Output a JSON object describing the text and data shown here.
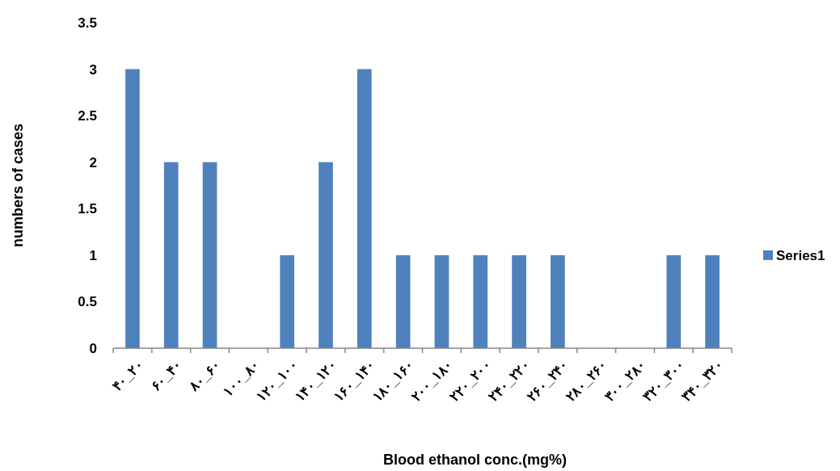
{
  "chart_data": {
    "type": "bar",
    "xlabel": "Blood ethanol conc.(mg%)",
    "ylabel": "numbers of cases",
    "categories": [
      "۴۰_۲۰",
      "۶۰_۴۰",
      "۸۰_۶۰",
      "۱۰۰_۸۰",
      "۱۲۰_۱۰۰",
      "۱۴۰_۱۲۰",
      "۱۶۰_۱۴۰",
      "۱۸۰_۱۶۰",
      "۲۰۰_۱۸۰",
      "۲۲۰_۲۰۰",
      "۲۴۰_۲۲۰",
      "۲۶۰_۲۴۰",
      "۲۸۰_۲۶۰",
      "۳۰۰_۲۸۰",
      "۳۲۰_۳۰۰",
      "۳۴۰_۳۲۰"
    ],
    "series": [
      {
        "name": "Series1",
        "color": "#4f81bd",
        "values": [
          3,
          2,
          2,
          0,
          1,
          2,
          3,
          1,
          1,
          1,
          1,
          1,
          0,
          0,
          1,
          1
        ]
      }
    ],
    "ylim": [
      0,
      3.5
    ],
    "yticks": [
      0,
      0.5,
      1,
      1.5,
      2,
      2.5,
      3,
      3.5
    ],
    "grid": false,
    "legend": "right"
  }
}
